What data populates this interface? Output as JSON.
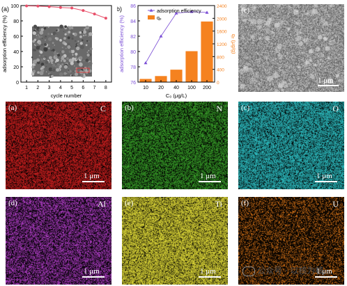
{
  "chart_data": [
    {
      "type": "line",
      "panel": "(a)",
      "xlabel": "cycle number",
      "ylabel": "adsorption efficiency (%)",
      "x": [
        1,
        2,
        3,
        4,
        5,
        6,
        7,
        8
      ],
      "y": [
        99.5,
        99.3,
        98.5,
        97.5,
        96.8,
        93.5,
        89.0,
        83.5
      ],
      "xlim": [
        0.5,
        8.5
      ],
      "ylim": [
        0,
        100
      ],
      "yticks": [
        0,
        20,
        40,
        60,
        80,
        100
      ],
      "color": "#e8506a",
      "inset_scale_label": "1 μm"
    },
    {
      "type": "bar",
      "panel": "(b)",
      "categories": [
        "10",
        "20",
        "40",
        "100",
        "200"
      ],
      "xlabel": "C₀ (μg/L)",
      "series": [
        {
          "name": "adsorption efficiency",
          "axis": "left",
          "kind": "line",
          "color": "#7b4fd6",
          "values": [
            78.5,
            82.0,
            85.0,
            85.2,
            85.1
          ]
        },
        {
          "name": "qₑ",
          "axis": "right",
          "kind": "bar",
          "color": "#f5821f",
          "values": [
            100,
            190,
            390,
            970,
            1900
          ]
        }
      ],
      "ylabel_left": "adsorption efficiency (%)",
      "ylabel_right": "qₑ (μg/g)",
      "ylim_left": [
        76,
        86
      ],
      "yticks_left": [
        76,
        78,
        80,
        82,
        84,
        86
      ],
      "ylim_right": [
        0,
        2400
      ],
      "yticks_right": [
        0,
        400,
        800,
        1200,
        1600,
        2000,
        2400
      ],
      "colors": {
        "left_axis": "#7b4fd6",
        "right_axis": "#f5821f"
      }
    }
  ],
  "sem": {
    "label": "(c)",
    "scale": "1 μm"
  },
  "maps": [
    {
      "label": "(a)",
      "element": "C",
      "scale": "1 μm",
      "color": "#d42020"
    },
    {
      "label": "(b)",
      "element": "N",
      "scale": "1 μm",
      "color": "#3aa52a"
    },
    {
      "label": "(c)",
      "element": "O",
      "scale": "1 μm",
      "color": "#2fc4c8"
    },
    {
      "label": "(d)",
      "element": "Al",
      "scale": "1 μm",
      "color": "#b23ec9"
    },
    {
      "label": "(e)",
      "element": "Ti",
      "scale": "1 μm",
      "color": "#e8e23a"
    },
    {
      "label": "(f)",
      "element": "U",
      "scale": "1 μm",
      "color": "#e07818"
    }
  ],
  "watermark": "公众号 · 以核为核"
}
